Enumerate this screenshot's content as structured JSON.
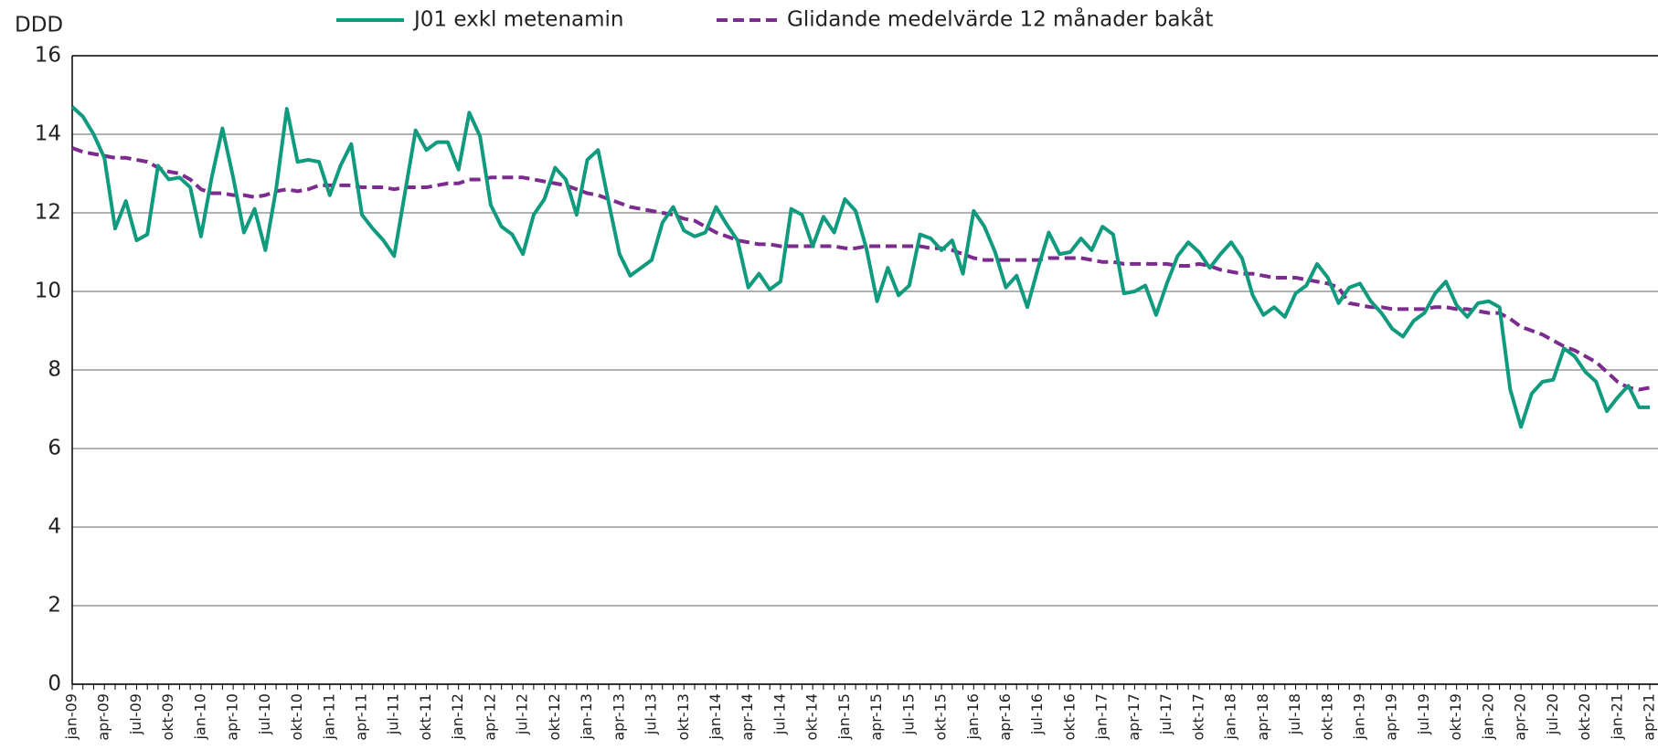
{
  "chart_data": {
    "type": "line",
    "ylabel": "DDD",
    "categories": [
      "jan-09",
      null,
      null,
      "apr-09",
      null,
      null,
      "jul-09",
      null,
      null,
      "okt-09",
      null,
      null,
      "jan-10",
      null,
      null,
      "apr-10",
      null,
      null,
      "jul-10",
      null,
      null,
      "okt-10",
      null,
      null,
      "jan-11",
      null,
      null,
      "apr-11",
      null,
      null,
      "jul-11",
      null,
      null,
      "okt-11",
      null,
      null,
      "jan-12",
      null,
      null,
      "apr-12",
      null,
      null,
      "jul-12",
      null,
      null,
      "okt-12",
      null,
      null,
      "jan-13",
      null,
      null,
      "apr-13",
      null,
      null,
      "jul-13",
      null,
      null,
      "okt-13",
      null,
      null,
      "jan-14",
      null,
      null,
      "apr-14",
      null,
      null,
      "jul-14",
      null,
      null,
      "okt-14",
      null,
      null,
      "jan-15",
      null,
      null,
      "apr-15",
      null,
      null,
      "jul-15",
      null,
      null,
      "okt-15",
      null,
      null,
      "jan-16",
      null,
      null,
      "apr-16",
      null,
      null,
      "jul-16",
      null,
      null,
      "okt-16",
      null,
      null,
      "jan-17",
      null,
      null,
      "apr-17",
      null,
      null,
      "jul-17",
      null,
      null,
      "okt-17",
      null,
      null,
      "jan-18",
      null,
      null,
      "apr-18",
      null,
      null,
      "jul-18",
      null,
      null,
      "okt-18",
      null,
      null,
      "jan-19",
      null,
      null,
      "apr-19",
      null,
      null,
      "jul-19",
      null,
      null,
      "okt-19",
      null,
      null,
      "jan-20",
      null,
      null,
      "apr-20",
      null,
      null,
      "jul-20",
      null,
      null,
      "okt-20",
      null,
      null,
      "jan-21",
      null,
      null,
      "apr-21"
    ],
    "series": [
      {
        "name": "J01 exkl metenamin",
        "color": "#119b7e",
        "dash": false,
        "values": [
          14.7,
          14.45,
          14.0,
          13.4,
          11.6,
          12.3,
          11.3,
          11.45,
          13.2,
          12.85,
          12.9,
          12.65,
          11.4,
          12.9,
          14.15,
          12.9,
          11.5,
          12.1,
          11.05,
          12.6,
          14.65,
          13.3,
          13.35,
          13.3,
          12.45,
          13.2,
          13.75,
          11.95,
          11.6,
          11.3,
          10.9,
          12.5,
          14.1,
          13.6,
          13.8,
          13.8,
          13.1,
          14.55,
          13.95,
          12.2,
          11.65,
          11.45,
          10.95,
          11.95,
          12.35,
          13.15,
          12.85,
          11.95,
          13.35,
          13.6,
          12.25,
          10.95,
          10.4,
          10.6,
          10.8,
          11.75,
          12.15,
          11.55,
          11.4,
          11.5,
          12.15,
          11.7,
          11.3,
          10.1,
          10.45,
          10.05,
          10.25,
          12.1,
          11.95,
          11.15,
          11.9,
          11.5,
          12.35,
          12.05,
          11.1,
          9.75,
          10.6,
          9.9,
          10.15,
          11.45,
          11.35,
          11.05,
          11.3,
          10.45,
          12.05,
          11.65,
          11.0,
          10.1,
          10.4,
          9.6,
          10.6,
          11.5,
          10.95,
          11.0,
          11.35,
          11.05,
          11.65,
          11.45,
          9.95,
          10.0,
          10.15,
          9.4,
          10.2,
          10.9,
          11.25,
          11.0,
          10.6,
          10.95,
          11.25,
          10.85,
          9.9,
          9.4,
          9.6,
          9.35,
          9.95,
          10.15,
          10.7,
          10.35,
          9.7,
          10.1,
          10.2,
          9.75,
          9.45,
          9.05,
          8.85,
          9.25,
          9.45,
          9.95,
          10.25,
          9.65,
          9.35,
          9.7,
          9.75,
          9.6,
          7.5,
          6.55,
          7.4,
          7.7,
          7.75,
          8.55,
          8.35,
          7.95,
          7.7,
          6.95,
          7.3,
          7.6,
          7.05,
          7.05
        ]
      },
      {
        "name": "Glidande medelvärde 12 månader bakåt",
        "color": "#7b2c8e",
        "dash": true,
        "values": [
          13.65,
          13.55,
          13.5,
          13.45,
          13.4,
          13.4,
          13.35,
          13.3,
          13.15,
          13.05,
          13.0,
          12.85,
          12.6,
          12.5,
          12.5,
          12.45,
          12.45,
          12.4,
          12.45,
          12.55,
          12.6,
          12.55,
          12.6,
          12.7,
          12.7,
          12.7,
          12.7,
          12.65,
          12.65,
          12.65,
          12.6,
          12.65,
          12.65,
          12.65,
          12.7,
          12.75,
          12.75,
          12.85,
          12.85,
          12.9,
          12.9,
          12.9,
          12.9,
          12.85,
          12.8,
          12.75,
          12.7,
          12.6,
          12.5,
          12.45,
          12.35,
          12.25,
          12.15,
          12.1,
          12.05,
          12.0,
          11.95,
          11.85,
          11.8,
          11.65,
          11.5,
          11.4,
          11.3,
          11.25,
          11.2,
          11.2,
          11.15,
          11.15,
          11.15,
          11.15,
          11.15,
          11.15,
          11.1,
          11.1,
          11.15,
          11.15,
          11.15,
          11.15,
          11.15,
          11.15,
          11.1,
          11.1,
          11.05,
          10.95,
          10.85,
          10.8,
          10.8,
          10.8,
          10.8,
          10.8,
          10.8,
          10.85,
          10.85,
          10.85,
          10.85,
          10.8,
          10.75,
          10.75,
          10.7,
          10.7,
          10.7,
          10.7,
          10.7,
          10.65,
          10.65,
          10.7,
          10.65,
          10.55,
          10.5,
          10.45,
          10.45,
          10.4,
          10.35,
          10.35,
          10.35,
          10.3,
          10.25,
          10.2,
          10.1,
          9.7,
          9.65,
          9.6,
          9.6,
          9.55,
          9.55,
          9.55,
          9.55,
          9.6,
          9.6,
          9.55,
          9.55,
          9.5,
          9.45,
          9.45,
          9.3,
          9.1,
          9.0,
          8.9,
          8.75,
          8.6,
          8.5,
          8.35,
          8.2,
          7.95,
          7.7,
          7.55,
          7.5,
          7.55
        ]
      }
    ],
    "ylim": [
      0,
      16
    ],
    "yticks": [
      0,
      2,
      4,
      6,
      8,
      10,
      12,
      14,
      16
    ],
    "grid": true,
    "legend": "top"
  }
}
